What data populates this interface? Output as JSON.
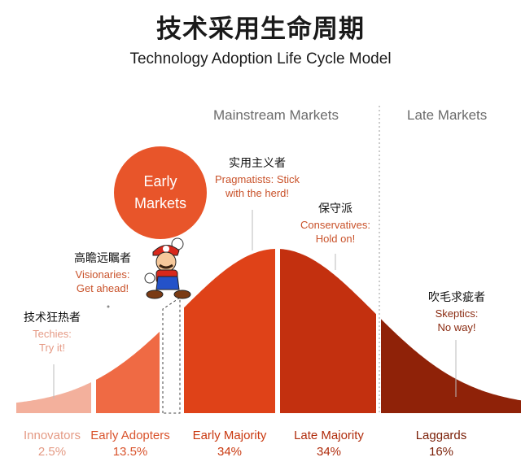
{
  "title_cn": "技术采用生命周期",
  "title_en": "Technology Adoption Life Cycle Model",
  "markets": {
    "mainstream": "Mainstream Markets",
    "late": "Late Markets",
    "early_line1": "Early",
    "early_line2": "Markets"
  },
  "annotations": {
    "innovators": {
      "cn": "技术狂热者",
      "en1": "Techies:",
      "en2": "Try it!"
    },
    "early_adopters": {
      "cn": "高瞻远瞩者",
      "en1": "Visionaries:",
      "en2": "Get ahead!"
    },
    "early_majority": {
      "cn": "实用主义者",
      "en1": "Pragmatists: Stick",
      "en2": "with the herd!"
    },
    "late_majority": {
      "cn": "保守派",
      "en1": "Conservatives:",
      "en2": "Hold on!"
    },
    "laggards": {
      "cn": "吹毛求疵者",
      "en1": "Skeptics:",
      "en2": "No way!"
    }
  },
  "segments": [
    {
      "name": "Innovators",
      "pct": "2.5%",
      "color": "#f3b09c"
    },
    {
      "name": "Early Adopters",
      "pct": "13.5%",
      "color": "#ef6a44"
    },
    {
      "name": "Early Majority",
      "pct": "34%",
      "color": "#df4218"
    },
    {
      "name": "Late Majority",
      "pct": "34%",
      "color": "#c3300f"
    },
    {
      "name": "Laggards",
      "pct": "16%",
      "color": "#8f2208"
    }
  ]
}
